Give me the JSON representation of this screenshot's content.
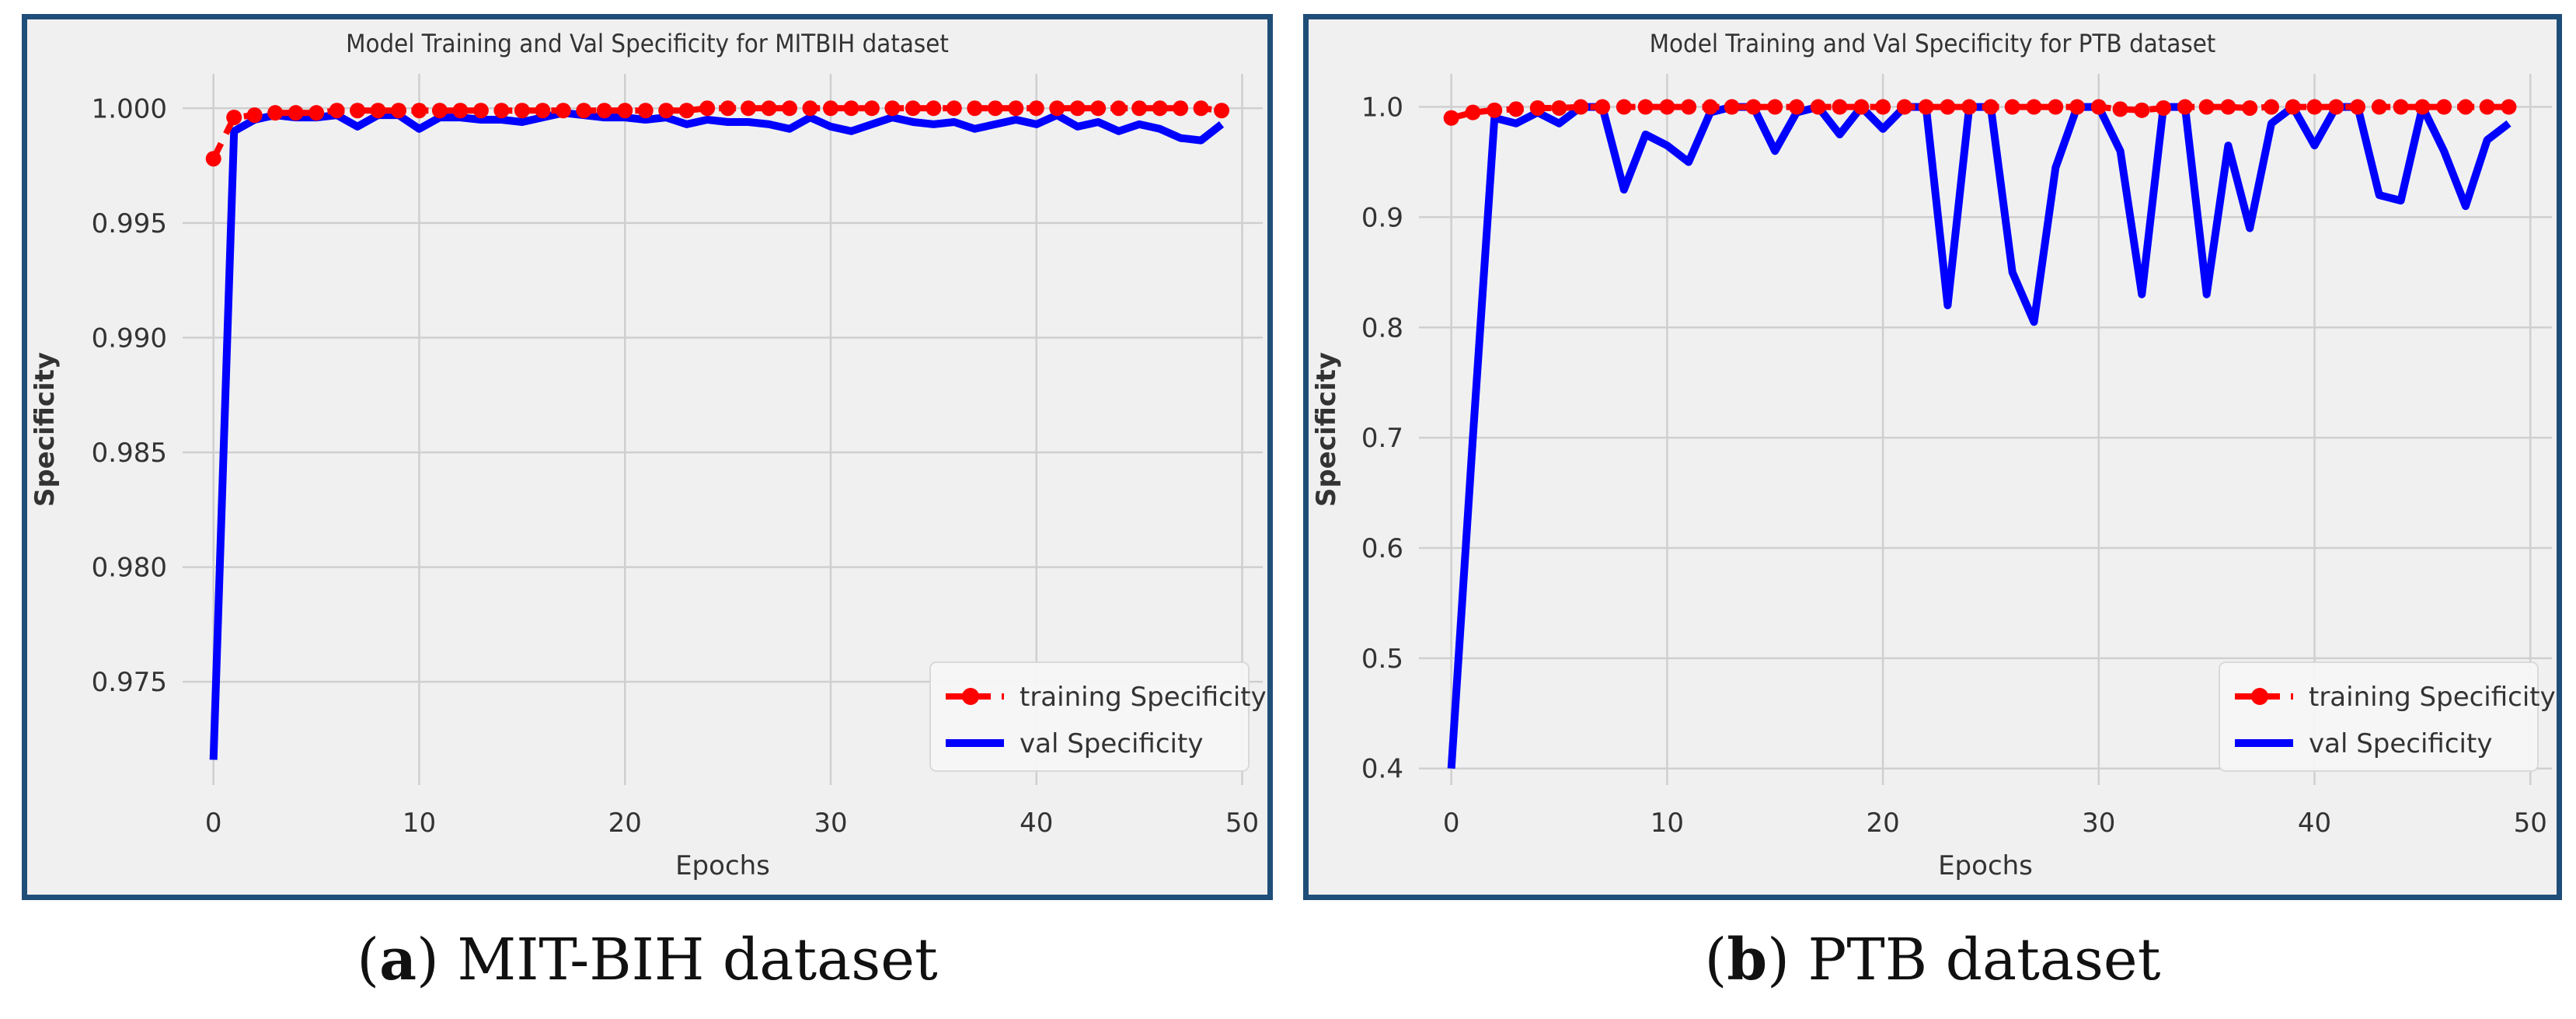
{
  "chart_data": [
    {
      "type": "line",
      "title": "Model Training and Val Specificity for MITBIH dataset",
      "xlabel": "Epochs",
      "ylabel": "Specificity",
      "xlim": [
        -1.5,
        51
      ],
      "ylim": [
        0.9705,
        1.0015
      ],
      "xticks": [
        0,
        10,
        20,
        30,
        40,
        50
      ],
      "yticks": [
        0.975,
        0.98,
        0.985,
        0.99,
        0.995,
        1.0
      ],
      "ytick_labels": [
        "0.975",
        "0.980",
        "0.985",
        "0.990",
        "0.995",
        "1.000"
      ],
      "grid": true,
      "legend": "lower-right",
      "series": [
        {
          "name": "training Specificity",
          "color": "#ff0000",
          "style": "dashed-dots",
          "x": [
            0,
            1,
            2,
            3,
            4,
            5,
            6,
            7,
            8,
            9,
            10,
            11,
            12,
            13,
            14,
            15,
            16,
            17,
            18,
            19,
            20,
            21,
            22,
            23,
            24,
            25,
            26,
            27,
            28,
            29,
            30,
            31,
            32,
            33,
            34,
            35,
            36,
            37,
            38,
            39,
            40,
            41,
            42,
            43,
            44,
            45,
            46,
            47,
            48,
            49
          ],
          "values": [
            0.9978,
            0.9996,
            0.9997,
            0.9998,
            0.9998,
            0.9998,
            0.9999,
            0.9999,
            0.9999,
            0.9999,
            0.9999,
            0.9999,
            0.9999,
            0.9999,
            0.9999,
            0.9999,
            0.9999,
            0.9999,
            0.9999,
            0.9999,
            0.9999,
            0.9999,
            0.9999,
            0.9999,
            1.0,
            1.0,
            1.0,
            1.0,
            1.0,
            1.0,
            1.0,
            1.0,
            1.0,
            1.0,
            1.0,
            1.0,
            1.0,
            1.0,
            1.0,
            1.0,
            1.0,
            1.0,
            1.0,
            1.0,
            1.0,
            1.0,
            1.0,
            1.0,
            1.0,
            0.9999
          ]
        },
        {
          "name": "val Specificity",
          "color": "#0000ff",
          "style": "solid",
          "x": [
            0,
            1,
            2,
            3,
            4,
            5,
            6,
            7,
            8,
            9,
            10,
            11,
            12,
            13,
            14,
            15,
            16,
            17,
            18,
            19,
            20,
            21,
            22,
            23,
            24,
            25,
            26,
            27,
            28,
            29,
            30,
            31,
            32,
            33,
            34,
            35,
            36,
            37,
            38,
            39,
            40,
            41,
            42,
            43,
            44,
            45,
            46,
            47,
            48,
            49
          ],
          "values": [
            0.9716,
            0.999,
            0.9995,
            0.9997,
            0.9996,
            0.9996,
            0.9997,
            0.9992,
            0.9997,
            0.9997,
            0.9991,
            0.9996,
            0.9996,
            0.9995,
            0.9995,
            0.9994,
            0.9996,
            0.9998,
            0.9997,
            0.9996,
            0.9996,
            0.9995,
            0.9996,
            0.9993,
            0.9995,
            0.9994,
            0.9994,
            0.9993,
            0.9991,
            0.9996,
            0.9992,
            0.999,
            0.9993,
            0.9996,
            0.9994,
            0.9993,
            0.9994,
            0.9991,
            0.9993,
            0.9995,
            0.9993,
            0.9997,
            0.9992,
            0.9994,
            0.999,
            0.9993,
            0.9991,
            0.9987,
            0.9986,
            0.9993
          ]
        }
      ]
    },
    {
      "type": "line",
      "title": "Model Training and Val Specificity for PTB dataset",
      "xlabel": "Epochs",
      "ylabel": "Specificity",
      "xlim": [
        -1.5,
        51
      ],
      "ylim": [
        0.385,
        1.03
      ],
      "xticks": [
        0,
        10,
        20,
        30,
        40,
        50
      ],
      "yticks": [
        0.4,
        0.5,
        0.6,
        0.7,
        0.8,
        0.9,
        1.0
      ],
      "ytick_labels": [
        "0.4",
        "0.5",
        "0.6",
        "0.7",
        "0.8",
        "0.9",
        "1.0"
      ],
      "grid": true,
      "legend": "lower-right",
      "series": [
        {
          "name": "training Specificity",
          "color": "#ff0000",
          "style": "dashed-dots",
          "x": [
            0,
            1,
            2,
            3,
            4,
            5,
            6,
            7,
            8,
            9,
            10,
            11,
            12,
            13,
            14,
            15,
            16,
            17,
            18,
            19,
            20,
            21,
            22,
            23,
            24,
            25,
            26,
            27,
            28,
            29,
            30,
            31,
            32,
            33,
            34,
            35,
            36,
            37,
            38,
            39,
            40,
            41,
            42,
            43,
            44,
            45,
            46,
            47,
            48,
            49
          ],
          "values": [
            0.99,
            0.995,
            0.997,
            0.998,
            0.999,
            0.999,
            1.0,
            1.0,
            1.0,
            1.0,
            1.0,
            1.0,
            1.0,
            1.0,
            1.0,
            1.0,
            1.0,
            1.0,
            1.0,
            1.0,
            1.0,
            1.0,
            1.0,
            1.0,
            1.0,
            1.0,
            1.0,
            1.0,
            1.0,
            1.0,
            1.0,
            0.998,
            0.997,
            0.999,
            1.0,
            1.0,
            1.0,
            0.999,
            1.0,
            1.0,
            1.0,
            1.0,
            1.0,
            1.0,
            1.0,
            1.0,
            1.0,
            1.0,
            1.0,
            1.0
          ]
        },
        {
          "name": "val Specificity",
          "color": "#0000ff",
          "style": "solid",
          "x": [
            0,
            1,
            2,
            3,
            4,
            5,
            6,
            7,
            8,
            9,
            10,
            11,
            12,
            13,
            14,
            15,
            16,
            17,
            18,
            19,
            20,
            21,
            22,
            23,
            24,
            25,
            26,
            27,
            28,
            29,
            30,
            31,
            32,
            33,
            34,
            35,
            36,
            37,
            38,
            39,
            40,
            41,
            42,
            43,
            44,
            45,
            46,
            47,
            48,
            49
          ],
          "values": [
            0.4,
            0.7,
            0.99,
            0.985,
            0.995,
            0.985,
            1.0,
            1.0,
            0.925,
            0.975,
            0.965,
            0.95,
            0.995,
            1.0,
            1.0,
            0.96,
            0.995,
            1.0,
            0.975,
            1.0,
            0.98,
            1.0,
            1.0,
            0.82,
            1.0,
            1.0,
            0.85,
            0.805,
            0.945,
            1.0,
            1.0,
            0.96,
            0.83,
            1.0,
            1.0,
            0.83,
            0.965,
            0.89,
            0.985,
            1.0,
            0.965,
            1.0,
            1.0,
            0.92,
            0.915,
            1.0,
            0.96,
            0.91,
            0.97,
            0.985
          ]
        }
      ]
    }
  ],
  "captions": [
    {
      "letter": "a",
      "text": " MIT-BIH dataset"
    },
    {
      "letter": "b",
      "text": " PTB dataset"
    }
  ]
}
